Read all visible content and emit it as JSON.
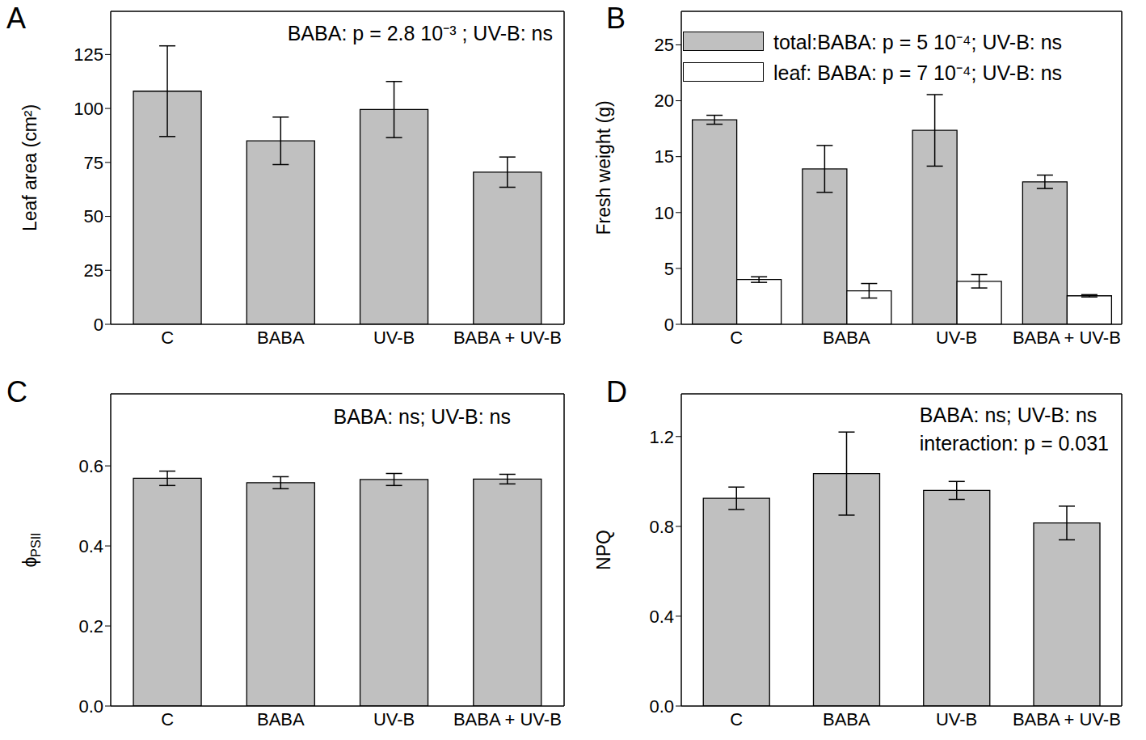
{
  "chart_data": [
    {
      "type": "bar",
      "panel": "A",
      "y_label": "Leaf area (cm²)",
      "categories": [
        "C",
        "BABA",
        "UV-B",
        "BABA + UV-B"
      ],
      "values": [
        108,
        85,
        99.5,
        70.5
      ],
      "errors": [
        21,
        11,
        13,
        7
      ],
      "color": "#c0c0c0",
      "ylim": [
        0,
        145
      ],
      "yticks": [
        0,
        25,
        50,
        75,
        100,
        125
      ],
      "annotations": [
        "BABA: p = 2.8 10⁻³ ; UV-B: ns"
      ]
    },
    {
      "type": "bar",
      "panel": "B",
      "y_label": "Fresh weight (g)",
      "categories": [
        "C",
        "BABA",
        "UV-B",
        "BABA + UV-B"
      ],
      "series": [
        {
          "name": "total:BABA: p = 5 10⁻⁴; UV-B: ns",
          "color": "#c0c0c0",
          "values": [
            18.3,
            13.9,
            17.35,
            12.75
          ],
          "errors": [
            0.4,
            2.1,
            3.2,
            0.6
          ]
        },
        {
          "name": "leaf: BABA: p = 7 10⁻⁴; UV-B: ns",
          "color": "#ffffff",
          "values": [
            4.0,
            3.0,
            3.85,
            2.55
          ],
          "errors": [
            0.25,
            0.65,
            0.6,
            0.1
          ]
        }
      ],
      "legend": "upper left",
      "ylim": [
        0,
        28
      ],
      "yticks": [
        0,
        5,
        10,
        15,
        20,
        25
      ]
    },
    {
      "type": "bar",
      "panel": "C",
      "y_label": {
        "text": "ϕ",
        "subscript": "PSII"
      },
      "categories": [
        "C",
        "BABA",
        "UV-B",
        "BABA + UV-B"
      ],
      "values": [
        0.569,
        0.558,
        0.566,
        0.567
      ],
      "errors": [
        0.018,
        0.015,
        0.015,
        0.012
      ],
      "color": "#c0c0c0",
      "ylim": [
        0,
        0.78
      ],
      "yticks": [
        {
          "value": 0,
          "label": "0.0"
        },
        0.2,
        0.4,
        0.6
      ],
      "annotations": [
        "BABA: ns; UV-B: ns"
      ]
    },
    {
      "type": "bar",
      "panel": "D",
      "y_label": "NPQ",
      "categories": [
        "C",
        "BABA",
        "UV-B",
        "BABA + UV-B"
      ],
      "values": [
        0.925,
        1.035,
        0.96,
        0.815
      ],
      "errors": [
        0.05,
        0.185,
        0.04,
        0.075
      ],
      "color": "#c0c0c0",
      "ylim": [
        0,
        1.39
      ],
      "yticks": [
        {
          "value": 0,
          "label": "0.0"
        },
        0.4,
        0.8,
        1.2
      ],
      "annotations": [
        "BABA: ns; UV-B: ns",
        "interaction: p = 0.031"
      ]
    }
  ]
}
